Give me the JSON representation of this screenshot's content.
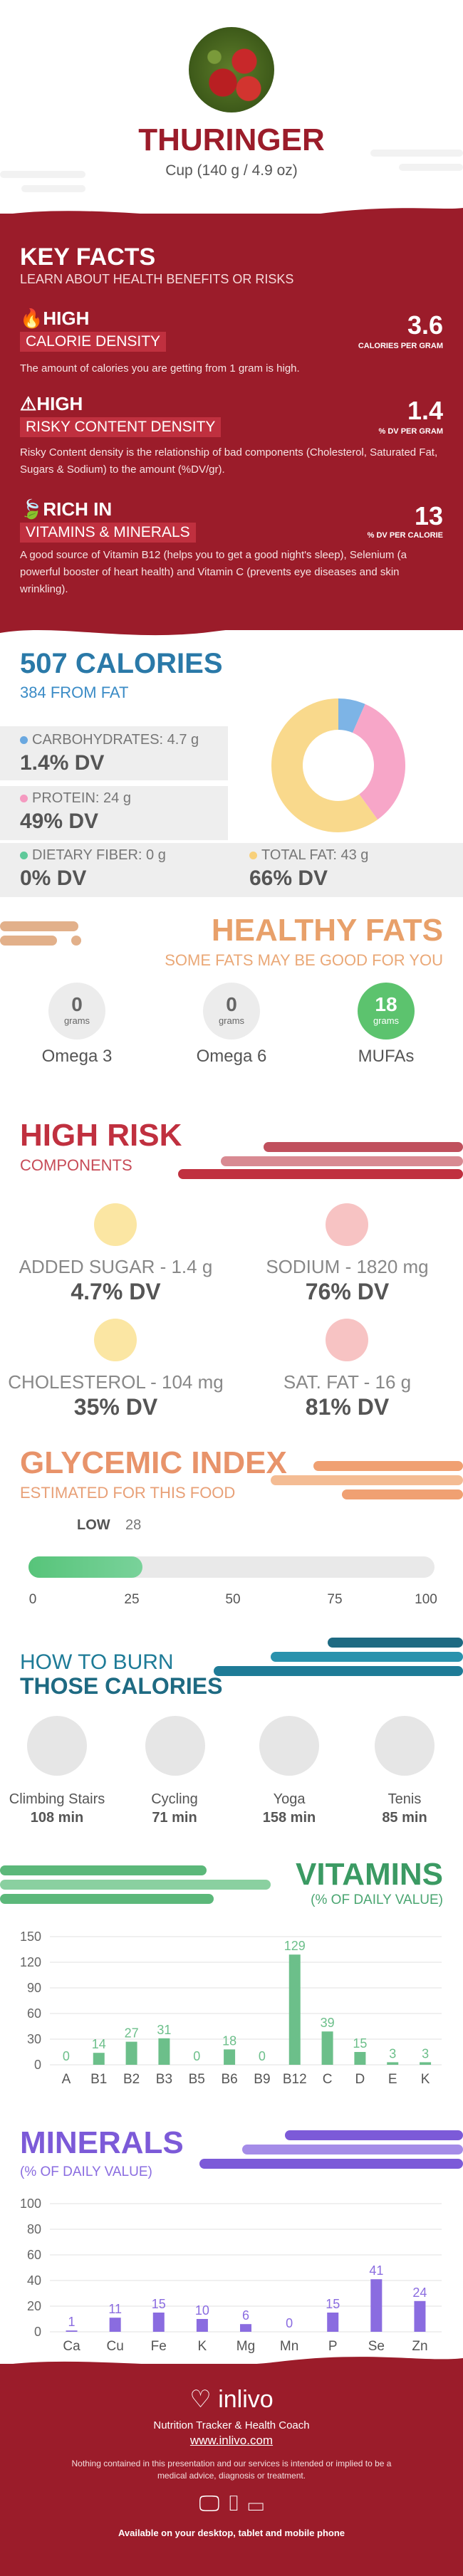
{
  "header": {
    "title": "THURINGER",
    "serving": "Cup (140 g / 4.9 oz)"
  },
  "key_facts": {
    "title": "KEY FACTS",
    "subtitle": "LEARN ABOUT HEALTH BENEFITS OR RISKS",
    "items": [
      {
        "level": "HIGH",
        "name": "CALORIE DENSITY",
        "value": "3.6",
        "unit": "CALORIES PER GRAM",
        "desc": "The amount of calories you are getting from 1 gram is high.",
        "icon": "flame-icon"
      },
      {
        "level": "HIGH",
        "name": "RISKY CONTENT DENSITY",
        "value": "1.4",
        "unit": "% DV PER GRAM",
        "desc": "Risky Content density is the relationship of bad components (Cholesterol, Saturated Fat, Sugars & Sodium) to the amount (%DV/gr).",
        "icon": "warning-icon"
      },
      {
        "level": "RICH  IN",
        "name": "VITAMINS & MINERALS",
        "value": "13",
        "unit": "% DV PER CALORIE",
        "desc": "A good source of Vitamin B12 (helps you to get a good night's sleep), Selenium (a powerful booster of heart health) and Vitamin C (prevents eye diseases and skin wrinkling).",
        "icon": "leaf-icon"
      }
    ]
  },
  "calories": {
    "title": "507 CALORIES",
    "from_fat": "384 FROM FAT",
    "macros": [
      {
        "label": "CARBOHYDRATES: 4.7 g",
        "dv": "1.4% DV",
        "color": "#6aa8e0"
      },
      {
        "label": "PROTEIN: 24 g",
        "dv": "49% DV",
        "color": "#f59ac0"
      },
      {
        "label": "DIETARY FIBER: 0 g",
        "dv": "0% DV",
        "color": "#5fc99a"
      },
      {
        "label": "TOTAL FAT: 43 g",
        "dv": "66% DV",
        "color": "#f8d07a"
      }
    ],
    "donut": [
      {
        "name": "carbohydrates",
        "value": 4.7,
        "color": "#7db4e6"
      },
      {
        "name": "protein",
        "value": 24,
        "color": "#f7a6c8"
      },
      {
        "name": "fat",
        "value": 43,
        "color": "#f9d98c"
      }
    ]
  },
  "healthy_fats": {
    "title": "HEALTHY FATS",
    "subtitle": "SOME FATS MAY BE GOOD FOR YOU",
    "items": [
      {
        "value": "0",
        "unit": "grams",
        "name": "Omega 3"
      },
      {
        "value": "0",
        "unit": "grams",
        "name": "Omega 6"
      },
      {
        "value": "18",
        "unit": "grams",
        "name": "MUFAs"
      }
    ]
  },
  "high_risk": {
    "title": "HIGH RISK",
    "subtitle": "COMPONENTS",
    "items": [
      {
        "label": "ADDED SUGAR - 1.4 g",
        "dv": "4.7% DV",
        "mood": "happy"
      },
      {
        "label": "SODIUM - 1820 mg",
        "dv": "76% DV",
        "mood": "sad"
      },
      {
        "label": "CHOLESTEROL - 104 mg",
        "dv": "35% DV",
        "mood": "happy"
      },
      {
        "label": "SAT. FAT - 16 g",
        "dv": "81% DV",
        "mood": "sad"
      }
    ]
  },
  "glycemic": {
    "title": "GLYCEMIC INDEX",
    "subtitle": "ESTIMATED FOR THIS FOOD",
    "level": "LOW",
    "value": "28",
    "value_num": 28,
    "ticks": [
      "0",
      "25",
      "50",
      "75",
      "100"
    ]
  },
  "burn": {
    "title1": "HOW TO BURN",
    "title2": "THOSE CALORIES",
    "items": [
      {
        "name": "Climbing Stairs",
        "min": "108 min"
      },
      {
        "name": "Cycling",
        "min": "71 min"
      },
      {
        "name": "Yoga",
        "min": "158 min"
      },
      {
        "name": "Tenis",
        "min": "85 min"
      }
    ]
  },
  "vitamins": {
    "title": "VITAMINS",
    "subtitle": "(% OF DAILY VALUE)"
  },
  "minerals": {
    "title": "MINERALS",
    "subtitle": "(% OF DAILY VALUE)"
  },
  "chart_data": [
    {
      "type": "bar",
      "categories": [
        "A",
        "B1",
        "B2",
        "B3",
        "B5",
        "B6",
        "B9",
        "B12",
        "C",
        "D",
        "E",
        "K"
      ],
      "values": [
        0,
        14,
        27,
        31,
        0,
        18,
        0,
        129,
        39,
        15,
        3,
        3
      ],
      "labels": [
        "0",
        "14",
        "27",
        "31",
        "0",
        "18",
        "0",
        "129",
        "39",
        "15",
        "3",
        "3"
      ],
      "yticks": [
        "0",
        "30",
        "60",
        "90",
        "120",
        "150"
      ],
      "ylim": [
        0,
        150
      ],
      "color": "#6cbf8a"
    },
    {
      "type": "bar",
      "categories": [
        "Ca",
        "Cu",
        "Fe",
        "K",
        "Mg",
        "Mn",
        "P",
        "Se",
        "Zn"
      ],
      "values": [
        1,
        11,
        15,
        10,
        6,
        0,
        15,
        41,
        24
      ],
      "labels": [
        "1",
        "11",
        "15",
        "10",
        "6",
        "0",
        "15",
        "41",
        "24"
      ],
      "yticks": [
        "0",
        "20",
        "40",
        "60",
        "80",
        "100"
      ],
      "ylim": [
        0,
        100
      ],
      "color": "#8a6ce0"
    }
  ],
  "footer": {
    "brand": "inlivo",
    "tagline": "Nutrition Tracker & Health Coach",
    "url": "www.inlivo.com",
    "disclaimer": "Nothing contained in this presentation and our services is intended or implied to be a medical advice, diagnosis or treatment.",
    "available": "Available on your desktop, tablet and mobile phone"
  }
}
